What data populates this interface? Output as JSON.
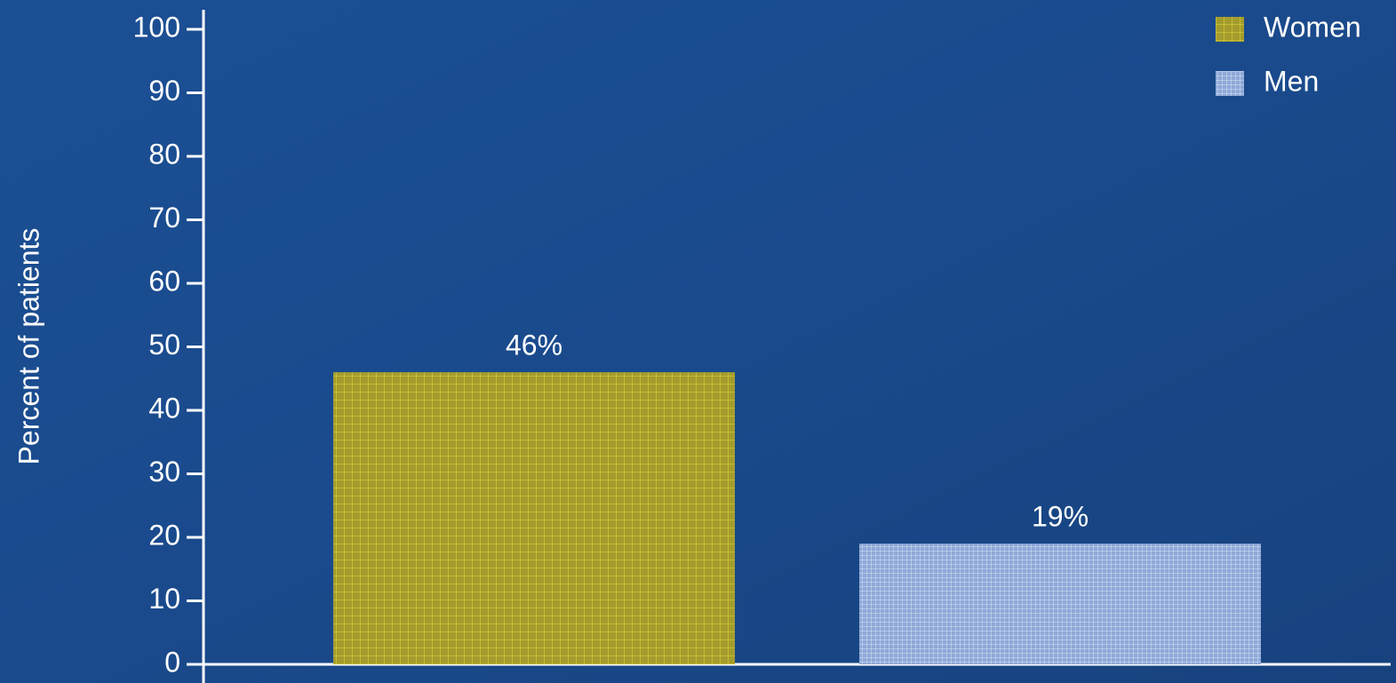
{
  "chart_data": {
    "type": "bar",
    "y_label": "Percent of patients",
    "categories": [
      null
    ],
    "series": [
      {
        "name": "Women",
        "color": "#a39c2e",
        "values": [
          46
        ],
        "value_labels": [
          "46%"
        ]
      },
      {
        "name": "Men",
        "color": "#8ea8d8",
        "values": [
          19
        ],
        "value_labels": [
          "19%"
        ]
      }
    ],
    "ylim": [
      0,
      100
    ],
    "yticks": [
      0,
      10,
      20,
      30,
      40,
      50,
      60,
      70,
      80,
      90,
      100
    ],
    "legend": "upper right"
  }
}
